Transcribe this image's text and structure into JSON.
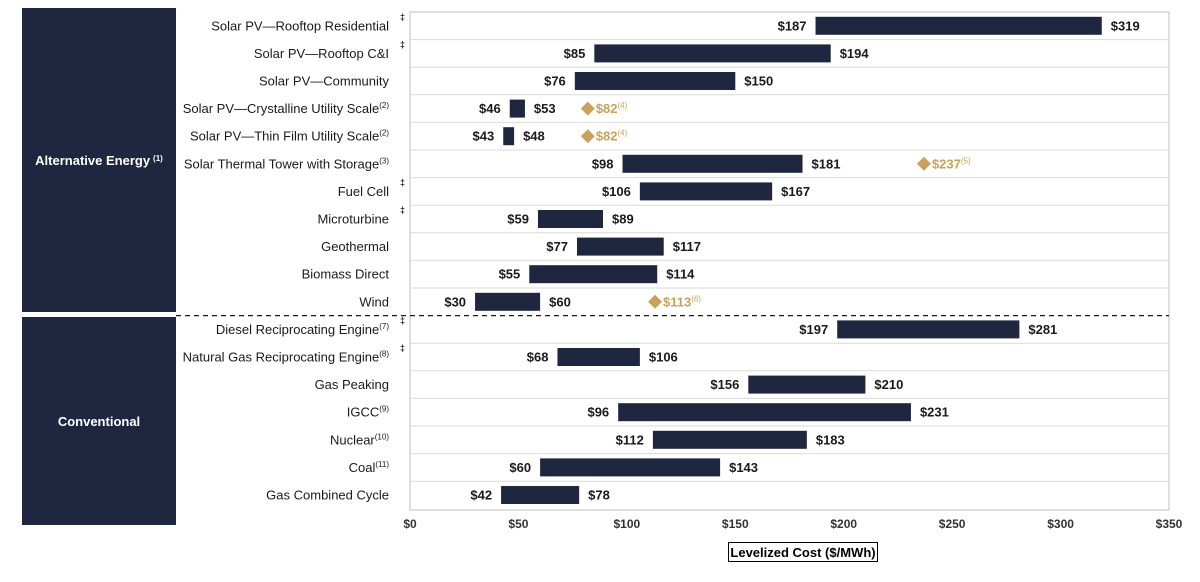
{
  "groups": {
    "alternative": "Alternative Energy",
    "alternative_note": "(1)",
    "conventional": "Conventional"
  },
  "chart_data": {
    "type": "bar",
    "orientation": "horizontal-range",
    "xlabel": "Levelized Cost ($/MWh)",
    "xlim": [
      0,
      350
    ],
    "xticks": [
      0,
      50,
      100,
      150,
      200,
      250,
      300,
      350
    ],
    "xtick_labels": [
      "$0",
      "$50",
      "$100",
      "$150",
      "$200",
      "$250",
      "$300",
      "$350"
    ],
    "grid": true,
    "colors": {
      "bar": "#1e2640",
      "marker": "#c9a15c",
      "grid": "#d9d9d9"
    },
    "categories": [
      {
        "label": "Solar PV—Rooftop Residential",
        "sup": "",
        "dagger": true,
        "low": 187,
        "high": 319,
        "low_label": "$187",
        "high_label": "$319",
        "group": "Alternative Energy"
      },
      {
        "label": "Solar PV—Rooftop C&I",
        "sup": "",
        "dagger": true,
        "low": 85,
        "high": 194,
        "low_label": "$85",
        "high_label": "$194",
        "group": "Alternative Energy"
      },
      {
        "label": "Solar PV—Community",
        "sup": "",
        "dagger": false,
        "low": 76,
        "high": 150,
        "low_label": "$76",
        "high_label": "$150",
        "group": "Alternative Energy"
      },
      {
        "label": "Solar PV—Crystalline Utility Scale",
        "sup": "(2)",
        "dagger": false,
        "low": 46,
        "high": 53,
        "low_label": "$46",
        "high_label": "$53",
        "marker": 82,
        "marker_label": "$82",
        "marker_sup": "(4)",
        "group": "Alternative Energy"
      },
      {
        "label": "Solar PV—Thin Film Utility Scale",
        "sup": "(2)",
        "dagger": false,
        "low": 43,
        "high": 48,
        "low_label": "$43",
        "high_label": "$48",
        "marker": 82,
        "marker_label": "$82",
        "marker_sup": "(4)",
        "group": "Alternative Energy"
      },
      {
        "label": "Solar Thermal Tower with Storage",
        "sup": "(3)",
        "dagger": false,
        "low": 98,
        "high": 181,
        "low_label": "$98",
        "high_label": "$181",
        "marker": 237,
        "marker_label": "$237",
        "marker_sup": "(5)",
        "group": "Alternative Energy"
      },
      {
        "label": "Fuel Cell",
        "sup": "",
        "dagger": true,
        "low": 106,
        "high": 167,
        "low_label": "$106",
        "high_label": "$167",
        "group": "Alternative Energy"
      },
      {
        "label": "Microturbine",
        "sup": "",
        "dagger": true,
        "low": 59,
        "high": 89,
        "low_label": "$59",
        "high_label": "$89",
        "group": "Alternative Energy"
      },
      {
        "label": "Geothermal",
        "sup": "",
        "dagger": false,
        "low": 77,
        "high": 117,
        "low_label": "$77",
        "high_label": "$117",
        "group": "Alternative Energy"
      },
      {
        "label": "Biomass Direct",
        "sup": "",
        "dagger": false,
        "low": 55,
        "high": 114,
        "low_label": "$55",
        "high_label": "$114",
        "group": "Alternative Energy"
      },
      {
        "label": "Wind",
        "sup": "",
        "dagger": false,
        "low": 30,
        "high": 60,
        "low_label": "$30",
        "high_label": "$60",
        "marker": 113,
        "marker_label": "$113",
        "marker_sup": "(6)",
        "group": "Alternative Energy"
      },
      {
        "label": "Diesel Reciprocating Engine",
        "sup": "(7)",
        "dagger": true,
        "low": 197,
        "high": 281,
        "low_label": "$197",
        "high_label": "$281",
        "group": "Conventional"
      },
      {
        "label": "Natural Gas Reciprocating Engine",
        "sup": "(8)",
        "dagger": true,
        "low": 68,
        "high": 106,
        "low_label": "$68",
        "high_label": "$106",
        "group": "Conventional"
      },
      {
        "label": "Gas Peaking",
        "sup": "",
        "dagger": false,
        "low": 156,
        "high": 210,
        "low_label": "$156",
        "high_label": "$210",
        "group": "Conventional"
      },
      {
        "label": "IGCC",
        "sup": "(9)",
        "dagger": false,
        "low": 96,
        "high": 231,
        "low_label": "$96",
        "high_label": "$231",
        "group": "Conventional"
      },
      {
        "label": "Nuclear",
        "sup": "(10)",
        "dagger": false,
        "low": 112,
        "high": 183,
        "low_label": "$112",
        "high_label": "$183",
        "group": "Conventional"
      },
      {
        "label": "Coal",
        "sup": "(11)",
        "dagger": false,
        "low": 60,
        "high": 143,
        "low_label": "$60",
        "high_label": "$143",
        "group": "Conventional"
      },
      {
        "label": "Gas Combined Cycle",
        "sup": "",
        "dagger": false,
        "low": 42,
        "high": 78,
        "low_label": "$42",
        "high_label": "$78",
        "group": "Conventional"
      }
    ]
  }
}
